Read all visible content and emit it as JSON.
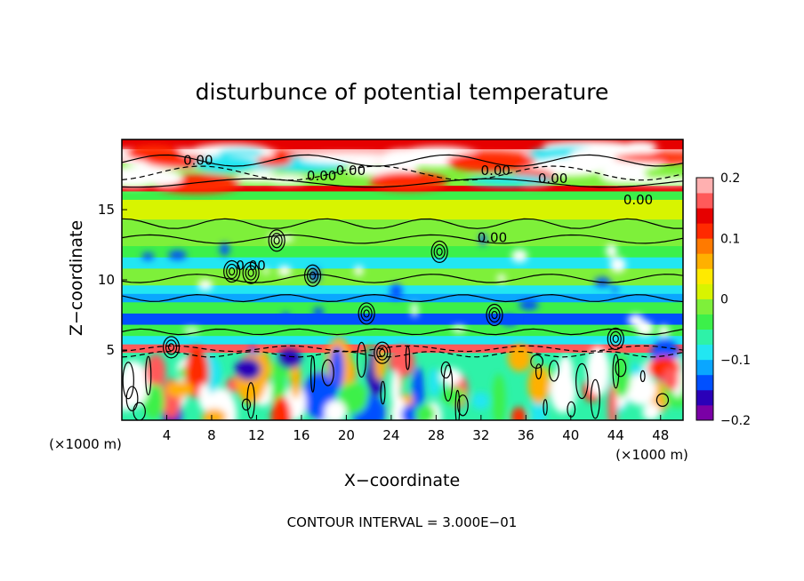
{
  "chart_data": {
    "type": "heatmap",
    "title": "disturbunce of potential temperature",
    "xlabel": "X−coordinate",
    "ylabel": "Z−coordinate",
    "x_unit": "(×1000 m)",
    "xlim": [
      0,
      50
    ],
    "ylim": [
      0,
      20
    ],
    "x_ticks": [
      4,
      8,
      12,
      16,
      20,
      24,
      28,
      32,
      36,
      40,
      44,
      48
    ],
    "y_ticks": [
      5,
      10,
      15
    ],
    "colorbar": {
      "range": [
        -0.2,
        0.2
      ],
      "tick_values": [
        0.2,
        0.1,
        0,
        -0.1,
        -0.2
      ],
      "tick_labels": [
        "0.2",
        "0.1",
        "0",
        "−0.1",
        "−0.2"
      ],
      "colors": [
        "#7a00a6",
        "#2a00b8",
        "#0050ff",
        "#0aa6ff",
        "#22e6f2",
        "#2ef2a8",
        "#3cf04a",
        "#7ef03a",
        "#d8f400",
        "#ffea00",
        "#ffb000",
        "#ff7a00",
        "#ff2a00",
        "#e60000",
        "#ff5a5a",
        "#ffb0b0"
      ]
    },
    "contour_labels": [
      "0.00",
      "0.00",
      "0.00",
      "0.00",
      "0.00",
      "0.00",
      "0.00",
      "0.00"
    ],
    "bands": [
      {
        "z": [
          19.3,
          20.0
        ],
        "value": 0.13
      },
      {
        "z": [
          18.3,
          19.3
        ],
        "value": 0.2
      },
      {
        "z": [
          16.7,
          18.3
        ],
        "value": -0.02
      },
      {
        "z": [
          16.3,
          16.7
        ],
        "value": 0.14
      },
      {
        "z": [
          15.7,
          16.3
        ],
        "value": -0.05
      },
      {
        "z": [
          14.3,
          15.7
        ],
        "value": 0.02
      },
      {
        "z": [
          12.4,
          14.3
        ],
        "value": -0.01
      },
      {
        "z": [
          11.6,
          12.4
        ],
        "value": -0.05
      },
      {
        "z": [
          10.8,
          11.6
        ],
        "value": -0.09
      },
      {
        "z": [
          9.6,
          10.8
        ],
        "value": -0.02
      },
      {
        "z": [
          9.0,
          9.6
        ],
        "value": -0.09
      },
      {
        "z": [
          8.4,
          9.0
        ],
        "value": -0.12
      },
      {
        "z": [
          7.6,
          8.4
        ],
        "value": -0.03
      },
      {
        "z": [
          6.8,
          7.6
        ],
        "value": -0.15
      },
      {
        "z": [
          6.0,
          6.8
        ],
        "value": -0.03
      },
      {
        "z": [
          5.4,
          6.0
        ],
        "value": -0.09
      },
      {
        "z": [
          4.8,
          5.4
        ],
        "value": 0.16
      },
      {
        "z": [
          0.0,
          4.8
        ],
        "value": -0.07
      }
    ],
    "footer": "CONTOUR INTERVAL = 3.000E−01"
  }
}
